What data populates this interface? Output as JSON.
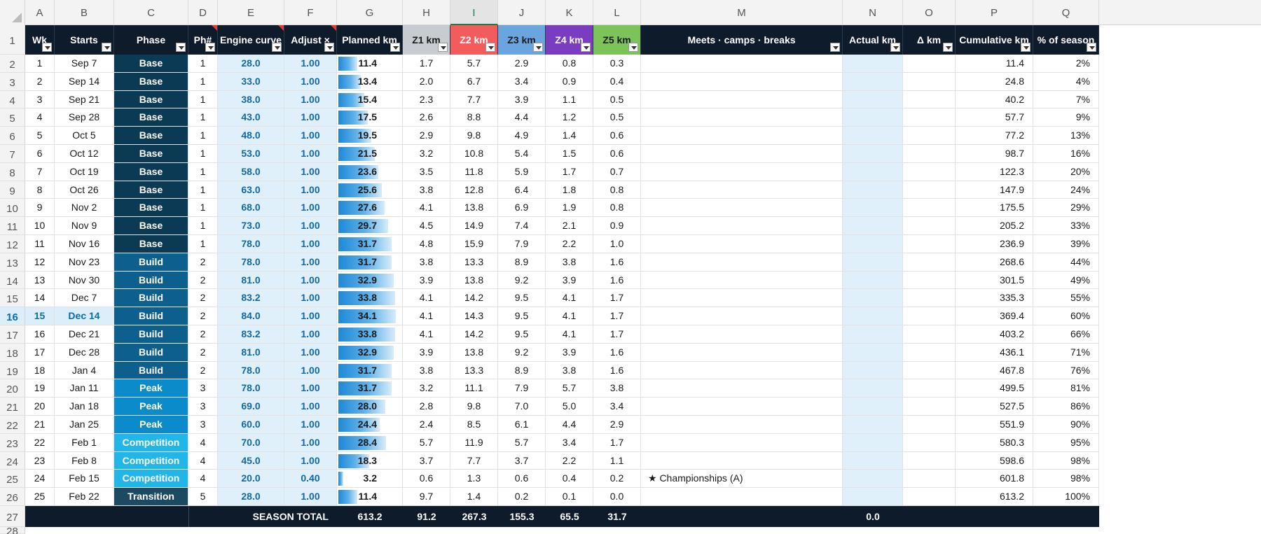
{
  "columns": [
    "A",
    "B",
    "C",
    "D",
    "E",
    "F",
    "G",
    "H",
    "I",
    "J",
    "K",
    "L",
    "M",
    "N",
    "O",
    "P",
    "Q"
  ],
  "selected_column": "I",
  "row_numbers": [
    "1",
    "2",
    "3",
    "4",
    "5",
    "6",
    "7",
    "8",
    "9",
    "10",
    "11",
    "12",
    "13",
    "14",
    "15",
    "16",
    "17",
    "18",
    "19",
    "20",
    "21",
    "22",
    "23",
    "24",
    "25",
    "26",
    "27",
    "28"
  ],
  "selected_row": "16",
  "headers": {
    "wk": "Wk",
    "starts": "Starts",
    "phase": "Phase",
    "ph": "Ph#",
    "engine": "Engine curve",
    "adjust": "Adjust ×",
    "planned": "Planned km",
    "z1": "Z1 km",
    "z2": "Z2 km",
    "z3": "Z3 km",
    "z4": "Z4 km",
    "z5": "Z5 km",
    "meets": "Meets · camps · breaks",
    "actual": "Actual km",
    "delta": "Δ km",
    "cumulative": "Cumulative km",
    "pct": "% of season"
  },
  "rows": [
    {
      "wk": "1",
      "starts": "Sep 7",
      "phase": "Base",
      "ph": "1",
      "engine": "28.0",
      "adjust": "1.00",
      "planned": "11.4",
      "planned_frac": 0.33,
      "z1": "1.7",
      "z2": "5.7",
      "z3": "2.9",
      "z4": "0.8",
      "z5": "0.3",
      "meets": "",
      "actual": "",
      "delta": "",
      "cum": "11.4",
      "pct": "2%"
    },
    {
      "wk": "2",
      "starts": "Sep 14",
      "phase": "Base",
      "ph": "1",
      "engine": "33.0",
      "adjust": "1.00",
      "planned": "13.4",
      "planned_frac": 0.39,
      "z1": "2.0",
      "z2": "6.7",
      "z3": "3.4",
      "z4": "0.9",
      "z5": "0.4",
      "meets": "",
      "actual": "",
      "delta": "",
      "cum": "24.8",
      "pct": "4%"
    },
    {
      "wk": "3",
      "starts": "Sep 21",
      "phase": "Base",
      "ph": "1",
      "engine": "38.0",
      "adjust": "1.00",
      "planned": "15.4",
      "planned_frac": 0.45,
      "z1": "2.3",
      "z2": "7.7",
      "z3": "3.9",
      "z4": "1.1",
      "z5": "0.5",
      "meets": "",
      "actual": "",
      "delta": "",
      "cum": "40.2",
      "pct": "7%"
    },
    {
      "wk": "4",
      "starts": "Sep 28",
      "phase": "Base",
      "ph": "1",
      "engine": "43.0",
      "adjust": "1.00",
      "planned": "17.5",
      "planned_frac": 0.51,
      "z1": "2.6",
      "z2": "8.8",
      "z3": "4.4",
      "z4": "1.2",
      "z5": "0.5",
      "meets": "",
      "actual": "",
      "delta": "",
      "cum": "57.7",
      "pct": "9%"
    },
    {
      "wk": "5",
      "starts": "Oct 5",
      "phase": "Base",
      "ph": "1",
      "engine": "48.0",
      "adjust": "1.00",
      "planned": "19.5",
      "planned_frac": 0.57,
      "z1": "2.9",
      "z2": "9.8",
      "z3": "4.9",
      "z4": "1.4",
      "z5": "0.6",
      "meets": "",
      "actual": "",
      "delta": "",
      "cum": "77.2",
      "pct": "13%"
    },
    {
      "wk": "6",
      "starts": "Oct 12",
      "phase": "Base",
      "ph": "1",
      "engine": "53.0",
      "adjust": "1.00",
      "planned": "21.5",
      "planned_frac": 0.63,
      "z1": "3.2",
      "z2": "10.8",
      "z3": "5.4",
      "z4": "1.5",
      "z5": "0.6",
      "meets": "",
      "actual": "",
      "delta": "",
      "cum": "98.7",
      "pct": "16%"
    },
    {
      "wk": "7",
      "starts": "Oct 19",
      "phase": "Base",
      "ph": "1",
      "engine": "58.0",
      "adjust": "1.00",
      "planned": "23.6",
      "planned_frac": 0.69,
      "z1": "3.5",
      "z2": "11.8",
      "z3": "5.9",
      "z4": "1.7",
      "z5": "0.7",
      "meets": "",
      "actual": "",
      "delta": "",
      "cum": "122.3",
      "pct": "20%"
    },
    {
      "wk": "8",
      "starts": "Oct 26",
      "phase": "Base",
      "ph": "1",
      "engine": "63.0",
      "adjust": "1.00",
      "planned": "25.6",
      "planned_frac": 0.75,
      "z1": "3.8",
      "z2": "12.8",
      "z3": "6.4",
      "z4": "1.8",
      "z5": "0.8",
      "meets": "",
      "actual": "",
      "delta": "",
      "cum": "147.9",
      "pct": "24%"
    },
    {
      "wk": "9",
      "starts": "Nov 2",
      "phase": "Base",
      "ph": "1",
      "engine": "68.0",
      "adjust": "1.00",
      "planned": "27.6",
      "planned_frac": 0.81,
      "z1": "4.1",
      "z2": "13.8",
      "z3": "6.9",
      "z4": "1.9",
      "z5": "0.8",
      "meets": "",
      "actual": "",
      "delta": "",
      "cum": "175.5",
      "pct": "29%"
    },
    {
      "wk": "10",
      "starts": "Nov 9",
      "phase": "Base",
      "ph": "1",
      "engine": "73.0",
      "adjust": "1.00",
      "planned": "29.7",
      "planned_frac": 0.87,
      "z1": "4.5",
      "z2": "14.9",
      "z3": "7.4",
      "z4": "2.1",
      "z5": "0.9",
      "meets": "",
      "actual": "",
      "delta": "",
      "cum": "205.2",
      "pct": "33%"
    },
    {
      "wk": "11",
      "starts": "Nov 16",
      "phase": "Base",
      "ph": "1",
      "engine": "78.0",
      "adjust": "1.00",
      "planned": "31.7",
      "planned_frac": 0.93,
      "z1": "4.8",
      "z2": "15.9",
      "z3": "7.9",
      "z4": "2.2",
      "z5": "1.0",
      "meets": "",
      "actual": "",
      "delta": "",
      "cum": "236.9",
      "pct": "39%"
    },
    {
      "wk": "12",
      "starts": "Nov 23",
      "phase": "Build",
      "ph": "2",
      "engine": "78.0",
      "adjust": "1.00",
      "planned": "31.7",
      "planned_frac": 0.93,
      "z1": "3.8",
      "z2": "13.3",
      "z3": "8.9",
      "z4": "3.8",
      "z5": "1.6",
      "meets": "",
      "actual": "",
      "delta": "",
      "cum": "268.6",
      "pct": "44%"
    },
    {
      "wk": "13",
      "starts": "Nov 30",
      "phase": "Build",
      "ph": "2",
      "engine": "81.0",
      "adjust": "1.00",
      "planned": "32.9",
      "planned_frac": 0.965,
      "z1": "3.9",
      "z2": "13.8",
      "z3": "9.2",
      "z4": "3.9",
      "z5": "1.6",
      "meets": "",
      "actual": "",
      "delta": "",
      "cum": "301.5",
      "pct": "49%"
    },
    {
      "wk": "14",
      "starts": "Dec 7",
      "phase": "Build",
      "ph": "2",
      "engine": "83.2",
      "adjust": "1.00",
      "planned": "33.8",
      "planned_frac": 0.99,
      "z1": "4.1",
      "z2": "14.2",
      "z3": "9.5",
      "z4": "4.1",
      "z5": "1.7",
      "meets": "",
      "actual": "",
      "delta": "",
      "cum": "335.3",
      "pct": "55%"
    },
    {
      "wk": "15",
      "starts": "Dec 14",
      "phase": "Build",
      "ph": "2",
      "engine": "84.0",
      "adjust": "1.00",
      "planned": "34.1",
      "planned_frac": 1.0,
      "z1": "4.1",
      "z2": "14.3",
      "z3": "9.5",
      "z4": "4.1",
      "z5": "1.7",
      "meets": "",
      "actual": "",
      "delta": "",
      "cum": "369.4",
      "pct": "60%"
    },
    {
      "wk": "16",
      "starts": "Dec 21",
      "phase": "Build",
      "ph": "2",
      "engine": "83.2",
      "adjust": "1.00",
      "planned": "33.8",
      "planned_frac": 0.99,
      "z1": "4.1",
      "z2": "14.2",
      "z3": "9.5",
      "z4": "4.1",
      "z5": "1.7",
      "meets": "",
      "actual": "",
      "delta": "",
      "cum": "403.2",
      "pct": "66%"
    },
    {
      "wk": "17",
      "starts": "Dec 28",
      "phase": "Build",
      "ph": "2",
      "engine": "81.0",
      "adjust": "1.00",
      "planned": "32.9",
      "planned_frac": 0.965,
      "z1": "3.9",
      "z2": "13.8",
      "z3": "9.2",
      "z4": "3.9",
      "z5": "1.6",
      "meets": "",
      "actual": "",
      "delta": "",
      "cum": "436.1",
      "pct": "71%"
    },
    {
      "wk": "18",
      "starts": "Jan 4",
      "phase": "Build",
      "ph": "2",
      "engine": "78.0",
      "adjust": "1.00",
      "planned": "31.7",
      "planned_frac": 0.93,
      "z1": "3.8",
      "z2": "13.3",
      "z3": "8.9",
      "z4": "3.8",
      "z5": "1.6",
      "meets": "",
      "actual": "",
      "delta": "",
      "cum": "467.8",
      "pct": "76%"
    },
    {
      "wk": "19",
      "starts": "Jan 11",
      "phase": "Peak",
      "ph": "3",
      "engine": "78.0",
      "adjust": "1.00",
      "planned": "31.7",
      "planned_frac": 0.93,
      "z1": "3.2",
      "z2": "11.1",
      "z3": "7.9",
      "z4": "5.7",
      "z5": "3.8",
      "meets": "",
      "actual": "",
      "delta": "",
      "cum": "499.5",
      "pct": "81%"
    },
    {
      "wk": "20",
      "starts": "Jan 18",
      "phase": "Peak",
      "ph": "3",
      "engine": "69.0",
      "adjust": "1.00",
      "planned": "28.0",
      "planned_frac": 0.82,
      "z1": "2.8",
      "z2": "9.8",
      "z3": "7.0",
      "z4": "5.0",
      "z5": "3.4",
      "meets": "",
      "actual": "",
      "delta": "",
      "cum": "527.5",
      "pct": "86%"
    },
    {
      "wk": "21",
      "starts": "Jan 25",
      "phase": "Peak",
      "ph": "3",
      "engine": "60.0",
      "adjust": "1.00",
      "planned": "24.4",
      "planned_frac": 0.72,
      "z1": "2.4",
      "z2": "8.5",
      "z3": "6.1",
      "z4": "4.4",
      "z5": "2.9",
      "meets": "",
      "actual": "",
      "delta": "",
      "cum": "551.9",
      "pct": "90%"
    },
    {
      "wk": "22",
      "starts": "Feb 1",
      "phase": "Competition",
      "ph": "4",
      "engine": "70.0",
      "adjust": "1.00",
      "planned": "28.4",
      "planned_frac": 0.83,
      "z1": "5.7",
      "z2": "11.9",
      "z3": "5.7",
      "z4": "3.4",
      "z5": "1.7",
      "meets": "",
      "actual": "",
      "delta": "",
      "cum": "580.3",
      "pct": "95%"
    },
    {
      "wk": "23",
      "starts": "Feb 8",
      "phase": "Competition",
      "ph": "4",
      "engine": "45.0",
      "adjust": "1.00",
      "planned": "18.3",
      "planned_frac": 0.54,
      "z1": "3.7",
      "z2": "7.7",
      "z3": "3.7",
      "z4": "2.2",
      "z5": "1.1",
      "meets": "",
      "actual": "",
      "delta": "",
      "cum": "598.6",
      "pct": "98%"
    },
    {
      "wk": "24",
      "starts": "Feb 15",
      "phase": "Competition",
      "ph": "4",
      "engine": "20.0",
      "adjust": "0.40",
      "planned": "3.2",
      "planned_frac": 0.09,
      "z1": "0.6",
      "z2": "1.3",
      "z3": "0.6",
      "z4": "0.4",
      "z5": "0.2",
      "meets": "★ Championships (A)",
      "actual": "",
      "delta": "",
      "cum": "601.8",
      "pct": "98%"
    },
    {
      "wk": "25",
      "starts": "Feb 22",
      "phase": "Transition",
      "ph": "5",
      "engine": "28.0",
      "adjust": "1.00",
      "planned": "11.4",
      "planned_frac": 0.33,
      "z1": "9.7",
      "z2": "1.4",
      "z3": "0.2",
      "z4": "0.1",
      "z5": "0.0",
      "meets": "",
      "actual": "",
      "delta": "",
      "cum": "613.2",
      "pct": "100%"
    }
  ],
  "total": {
    "label": "SEASON TOTAL",
    "planned": "613.2",
    "z1": "91.2",
    "z2": "267.3",
    "z3": "155.3",
    "z4": "65.5",
    "z5": "31.7",
    "actual": "0.0"
  },
  "colors": {
    "header_bg": "#0d1b2a",
    "phase_base": "#0b3a55",
    "phase_build": "#0d5f8e",
    "phase_peak": "#0b8bc9",
    "phase_competition": "#22b5e8",
    "phase_transition": "#1c4a63",
    "input_fill": "#dff0fb",
    "z1": "#c8ccd0",
    "z2": "#f25c5c",
    "z3": "#6aa5e0",
    "z4": "#7a3cc0",
    "z5": "#7cc35a"
  }
}
